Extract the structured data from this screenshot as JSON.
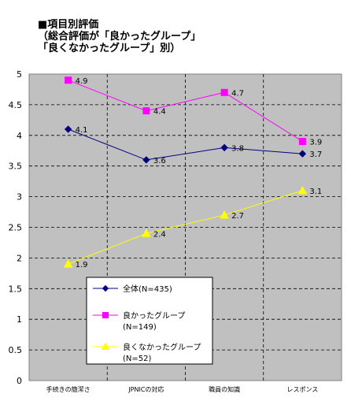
{
  "chart_data": {
    "type": "line",
    "title": [
      "■項目別評価",
      "（総合評価が「良かったグループ」",
      "「良くなかったグループ」別）"
    ],
    "categories": [
      "手続きの簡潔さ",
      "JPNICの対応",
      "職員の知識",
      "レスポンス"
    ],
    "ylim": [
      0,
      5
    ],
    "yticks": [
      "0",
      "0.5",
      "1",
      "1.5",
      "2",
      "2.5",
      "3",
      "3.5",
      "4",
      "4.5",
      "5"
    ],
    "grid": true,
    "legend_position": "bottom-left",
    "series": [
      {
        "name": "全体(N=435)",
        "values": [
          4.1,
          3.6,
          3.8,
          3.7
        ],
        "labels": [
          "4.1",
          "3.6",
          "3.8",
          "3.7"
        ],
        "color": "#000080",
        "marker": "diamond"
      },
      {
        "name": "良かったグループ",
        "name2": "(N=149)",
        "values": [
          4.9,
          4.4,
          4.7,
          3.9
        ],
        "labels": [
          "4.9",
          "4.4",
          "4.7",
          "3.9"
        ],
        "color": "#ff00ff",
        "marker": "square"
      },
      {
        "name": "良くなかったグループ",
        "name2": "(N=52)",
        "values": [
          1.9,
          2.4,
          2.7,
          3.1
        ],
        "labels": [
          "1.9",
          "2.4",
          "2.7",
          "3.1"
        ],
        "color": "#ffff00",
        "marker": "triangle"
      }
    ],
    "colors": {
      "plot_bg": "#c0c0c0",
      "border": "#808080",
      "gridline": "#000000"
    }
  }
}
